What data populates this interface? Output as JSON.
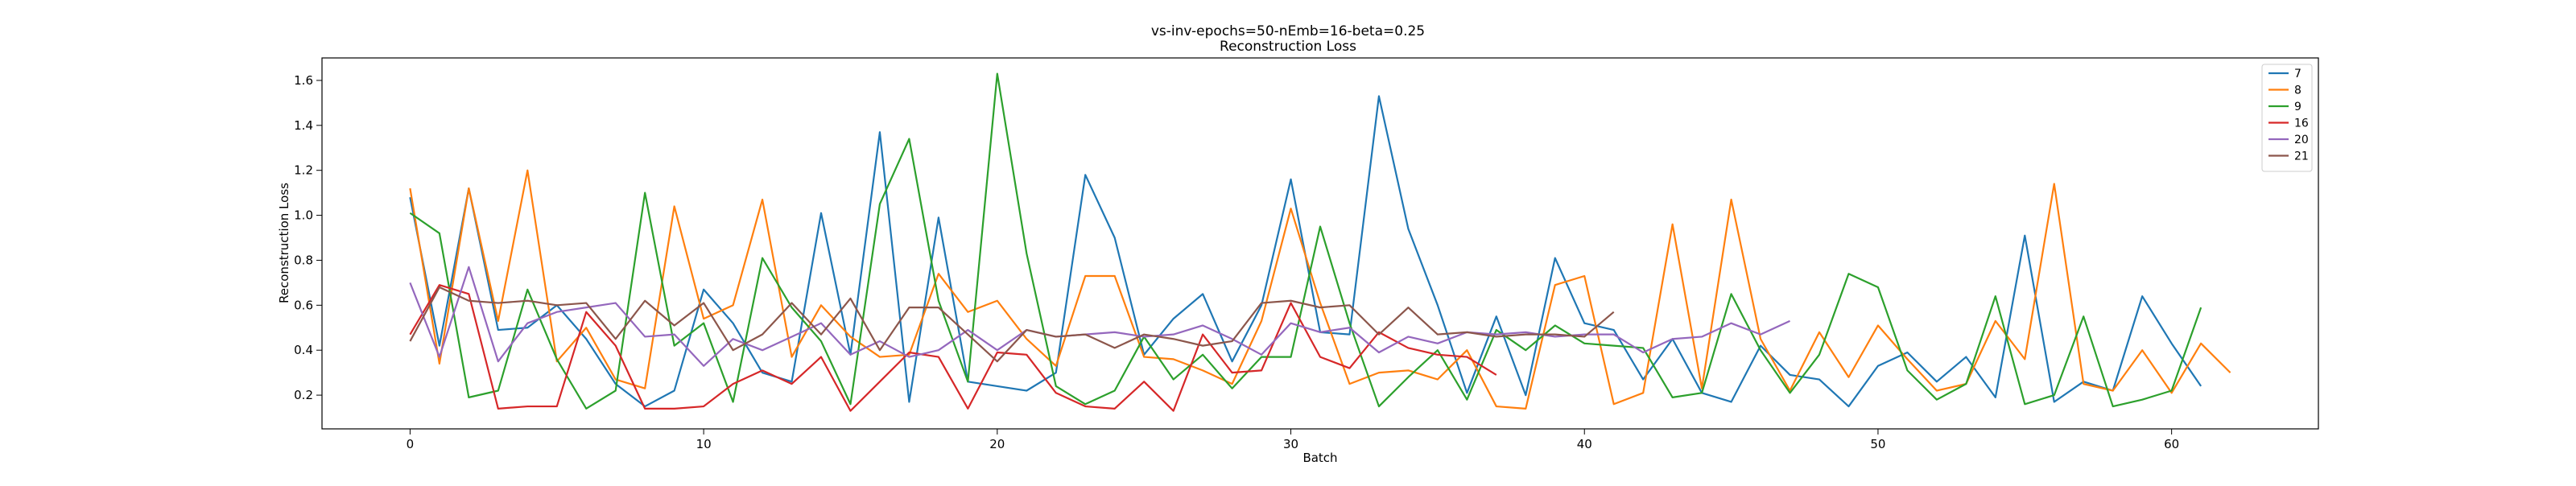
{
  "chart_data": {
    "type": "line",
    "title": "vs-inv-epochs=50-nEmb=16-beta=0.25",
    "subtitle": "Reconstruction Loss",
    "xlabel": "Batch",
    "ylabel": "Reconstruction Loss",
    "xlim": [
      -3,
      65
    ],
    "ylim": [
      0.05,
      1.7
    ],
    "xticks": [
      0,
      10,
      20,
      30,
      40,
      50,
      60
    ],
    "yticks": [
      0.2,
      0.4,
      0.6,
      0.8,
      1.0,
      1.2,
      1.4,
      1.6
    ],
    "grid": false,
    "legend_position": "top-right",
    "series": [
      {
        "name": "7",
        "color": "#1f77b4",
        "values": [
          1.08,
          0.42,
          1.12,
          0.49,
          0.5,
          0.6,
          0.45,
          0.25,
          0.15,
          0.22,
          0.67,
          0.52,
          0.3,
          0.26,
          1.01,
          0.38,
          1.37,
          0.17,
          0.99,
          0.26,
          0.24,
          0.22,
          0.3,
          1.18,
          0.9,
          0.38,
          0.54,
          0.65,
          0.35,
          0.6,
          1.16,
          0.48,
          0.47,
          1.53,
          0.94,
          0.6,
          0.21,
          0.55,
          0.2,
          0.81,
          0.52,
          0.49,
          0.27,
          0.45,
          0.21,
          0.17,
          0.42,
          0.29,
          0.27,
          0.15,
          0.33,
          0.39,
          0.26,
          0.37,
          0.19,
          0.91,
          0.17,
          0.26,
          0.22,
          0.64,
          0.43,
          0.24
        ]
      },
      {
        "name": "8",
        "color": "#ff7f0e",
        "values": [
          1.12,
          0.34,
          1.12,
          0.53,
          1.2,
          0.35,
          0.5,
          0.27,
          0.23,
          1.04,
          0.54,
          0.6,
          1.07,
          0.37,
          0.6,
          0.46,
          0.37,
          0.38,
          0.74,
          0.57,
          0.62,
          0.45,
          0.33,
          0.73,
          0.73,
          0.37,
          0.36,
          0.31,
          0.25,
          0.53,
          1.03,
          0.61,
          0.25,
          0.3,
          0.31,
          0.27,
          0.4,
          0.15,
          0.14,
          0.69,
          0.73,
          0.16,
          0.21,
          0.96,
          0.23,
          1.07,
          0.45,
          0.22,
          0.48,
          0.28,
          0.51,
          0.36,
          0.22,
          0.25,
          0.53,
          0.36,
          1.14,
          0.25,
          0.22,
          0.4,
          0.21,
          0.43,
          0.3
        ]
      },
      {
        "name": "9",
        "color": "#2ca02c",
        "values": [
          1.01,
          0.92,
          0.19,
          0.22,
          0.67,
          0.36,
          0.14,
          0.22,
          1.1,
          0.42,
          0.52,
          0.17,
          0.81,
          0.59,
          0.44,
          0.16,
          1.05,
          1.34,
          0.62,
          0.26,
          1.63,
          0.83,
          0.24,
          0.16,
          0.22,
          0.46,
          0.27,
          0.38,
          0.23,
          0.37,
          0.37,
          0.95,
          0.52,
          0.15,
          0.28,
          0.4,
          0.18,
          0.49,
          0.4,
          0.51,
          0.43,
          0.42,
          0.41,
          0.19,
          0.21,
          0.65,
          0.4,
          0.21,
          0.38,
          0.74,
          0.68,
          0.31,
          0.18,
          0.25,
          0.64,
          0.16,
          0.2,
          0.55,
          0.15,
          0.18,
          0.22,
          0.59
        ]
      },
      {
        "name": "16",
        "color": "#d62728",
        "values": [
          0.47,
          0.69,
          0.65,
          0.14,
          0.15,
          0.15,
          0.57,
          0.42,
          0.14,
          0.14,
          0.15,
          0.25,
          0.31,
          0.25,
          0.37,
          0.13,
          0.26,
          0.39,
          0.37,
          0.14,
          0.39,
          0.38,
          0.21,
          0.15,
          0.14,
          0.26,
          0.13,
          0.47,
          0.3,
          0.31,
          0.61,
          0.37,
          0.32,
          0.48,
          0.41,
          0.38,
          0.37,
          0.29
        ]
      },
      {
        "name": "20",
        "color": "#9467bd",
        "values": [
          0.7,
          0.37,
          0.77,
          0.35,
          0.52,
          0.57,
          0.59,
          0.61,
          0.46,
          0.47,
          0.33,
          0.45,
          0.4,
          0.46,
          0.52,
          0.38,
          0.44,
          0.37,
          0.4,
          0.49,
          0.4,
          0.49,
          0.46,
          0.47,
          0.48,
          0.46,
          0.47,
          0.51,
          0.45,
          0.38,
          0.52,
          0.48,
          0.5,
          0.39,
          0.46,
          0.43,
          0.48,
          0.47,
          0.48,
          0.46,
          0.47,
          0.47,
          0.39,
          0.45,
          0.46,
          0.52,
          0.47,
          0.53
        ]
      },
      {
        "name": "21",
        "color": "#8c564b",
        "values": [
          0.44,
          0.68,
          0.62,
          0.61,
          0.62,
          0.6,
          0.61,
          0.45,
          0.62,
          0.51,
          0.61,
          0.4,
          0.47,
          0.61,
          0.47,
          0.63,
          0.4,
          0.59,
          0.59,
          0.47,
          0.35,
          0.49,
          0.46,
          0.47,
          0.41,
          0.47,
          0.45,
          0.42,
          0.44,
          0.61,
          0.62,
          0.59,
          0.6,
          0.47,
          0.59,
          0.47,
          0.48,
          0.46,
          0.47,
          0.47,
          0.46,
          0.57
        ]
      }
    ]
  }
}
